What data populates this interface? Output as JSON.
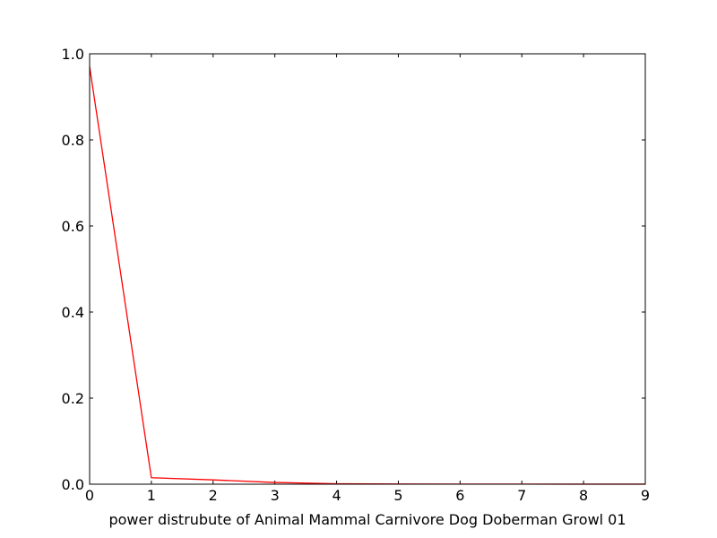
{
  "chart_data": {
    "type": "line",
    "title": "",
    "xlabel": "power distrubute of Animal Mammal Carnivore Dog Doberman Growl 01",
    "ylabel": "",
    "xlim": [
      0,
      9
    ],
    "ylim": [
      0,
      1.0
    ],
    "x_ticks": [
      "0",
      "1",
      "2",
      "3",
      "4",
      "5",
      "6",
      "7",
      "8",
      "9"
    ],
    "y_ticks": [
      "0.0",
      "0.2",
      "0.4",
      "0.6",
      "0.8",
      "1.0"
    ],
    "grid": false,
    "legend": "none",
    "series": [
      {
        "color": "#ff0000",
        "x": [
          0,
          1,
          2,
          3,
          4,
          5,
          6,
          7,
          8,
          9
        ],
        "y": [
          0.97,
          0.015,
          0.01,
          0.004,
          0.001,
          0.0005,
          0.0003,
          0.0002,
          0.0001,
          0.0001
        ]
      }
    ]
  }
}
